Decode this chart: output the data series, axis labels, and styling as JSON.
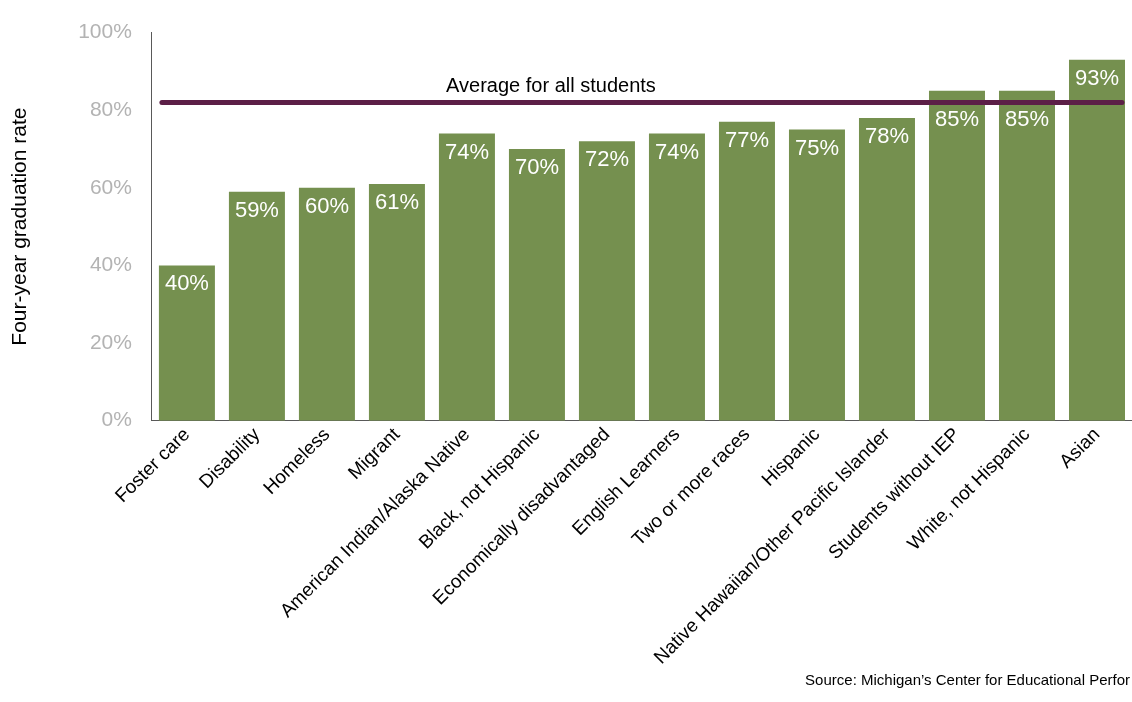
{
  "chart_data": {
    "type": "bar",
    "ylabel": "Four-year graduation rate",
    "categories": [
      "Foster care",
      "Disability",
      "Homeless",
      "Migrant",
      "American Indian/Alaska Native",
      "Black, not Hispanic",
      "Economically disadvantaged",
      "English Learners",
      "Two or more races",
      "Hispanic",
      "Native Hawaiian/Other Pacific Islander",
      "Students without IEP",
      "White, not Hispanic",
      "Asian"
    ],
    "values": [
      40,
      59,
      60,
      61,
      74,
      70,
      72,
      74,
      77,
      75,
      78,
      85,
      85,
      93
    ],
    "value_labels": [
      "40%",
      "59%",
      "60%",
      "61%",
      "74%",
      "70%",
      "72%",
      "74%",
      "77%",
      "75%",
      "78%",
      "85%",
      "85%",
      "93%"
    ],
    "color": "#75904f",
    "ylim": [
      0,
      100
    ],
    "yticks": [
      {
        "value": 0,
        "label": "0%"
      },
      {
        "value": 20,
        "label": "20%"
      },
      {
        "value": 40,
        "label": "40%"
      },
      {
        "value": 60,
        "label": "60%"
      },
      {
        "value": 80,
        "label": "80%"
      },
      {
        "value": 100,
        "label": "100%"
      }
    ],
    "grid": false,
    "legend": false,
    "ref_lines": [
      {
        "axis": "y",
        "value": 82,
        "label": "Average for all students",
        "color": "#5c1f47"
      }
    ],
    "annotations": [
      "Source: Michigan’s Center for Educational Perfor"
    ]
  }
}
